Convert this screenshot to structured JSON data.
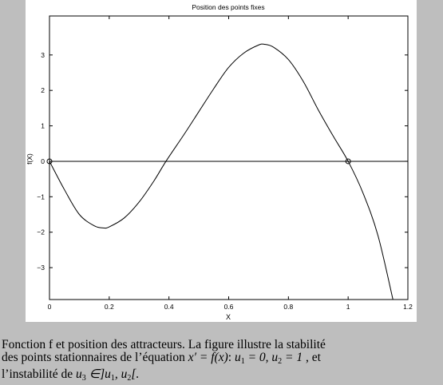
{
  "chart_data": {
    "type": "line",
    "title": "Position des points fixes",
    "xlabel": "X",
    "ylabel": "f(X)",
    "xlim": [
      0,
      1.2
    ],
    "ylim": [
      -3.9,
      4.1
    ],
    "xticks": [
      0,
      0.2,
      0.4,
      0.6,
      0.8,
      1,
      1.2
    ],
    "xtick_labels": [
      "0",
      "0.2",
      "0.4",
      "0.6",
      "0.8",
      "1",
      "1.2"
    ],
    "yticks": [
      -3,
      -2,
      -1,
      0,
      1,
      2,
      3
    ],
    "ytick_labels": [
      "−3",
      "−2",
      "−1",
      "0",
      "1",
      "2",
      "3"
    ],
    "series": [
      {
        "type": "curve",
        "color": "#000000",
        "x": [
          0,
          0.05,
          0.1,
          0.15,
          0.18,
          0.2,
          0.25,
          0.3,
          0.35,
          0.39,
          0.45,
          0.5,
          0.55,
          0.6,
          0.65,
          0.7,
          0.72,
          0.75,
          0.8,
          0.85,
          0.9,
          0.95,
          1.0,
          1.05,
          1.1,
          1.15
        ],
        "y": [
          0,
          -0.8,
          -1.5,
          -1.82,
          -1.88,
          -1.85,
          -1.6,
          -1.15,
          -0.55,
          0,
          0.75,
          1.4,
          2.05,
          2.65,
          3.05,
          3.28,
          3.3,
          3.22,
          2.87,
          2.25,
          1.45,
          0.71,
          0,
          -0.9,
          -2.1,
          -3.9
        ]
      },
      {
        "type": "hline",
        "color": "#000000",
        "x": [
          0,
          1.2
        ],
        "y": [
          0,
          0
        ]
      }
    ],
    "markers": [
      {
        "x": 0,
        "y": 0,
        "shape": "circle"
      },
      {
        "x": 1,
        "y": 0,
        "shape": "circle"
      }
    ],
    "grid": false,
    "legend": "none"
  },
  "caption": {
    "line1": "Fonction f et position des attracteurs. La figure illustre la stabilité",
    "line2_part1": "des points stationnaires de l’équation ",
    "line2_math1": "x′ = f(x)",
    "line2_part2": ": ",
    "line2_math2": "u",
    "line2_sub1": "1",
    "line2_math3": " = 0, u",
    "line2_sub2": "2",
    "line2_math4": " = 1",
    "line2_part3": " , et",
    "line3_part1": "l’instabilité de ",
    "line3_math1": "u",
    "line3_sub1": "3",
    "line3_math2": " ∈]u",
    "line3_sub2": "1",
    "line3_math3": ", u",
    "line3_sub3": "2",
    "line3_math4": "[."
  }
}
